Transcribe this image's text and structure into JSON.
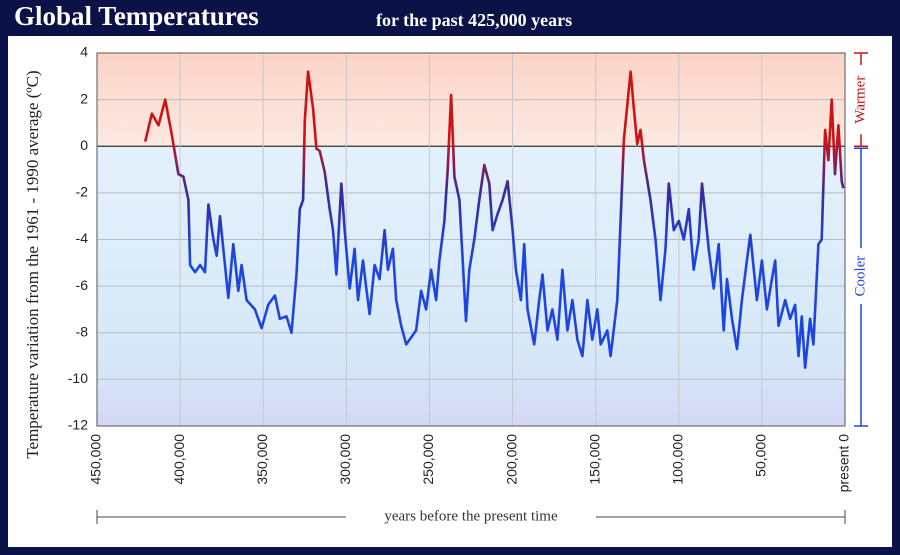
{
  "chart_data": {
    "type": "line",
    "title": "Global Temperatures",
    "subtitle": "for the past 425,000 years",
    "x_label": "years before the present time",
    "y_label": "Temperature variation from the 1961 - 1990 average (ºC)",
    "warm_label": "Warmer",
    "cool_label": "Cooler",
    "xlim": [
      450000,
      0
    ],
    "xticks": [
      {
        "value": 450000,
        "label": "450,000"
      },
      {
        "value": 400000,
        "label": "400,000"
      },
      {
        "value": 350000,
        "label": "350,000"
      },
      {
        "value": 300000,
        "label": "300,000"
      },
      {
        "value": 250000,
        "label": "250,000"
      },
      {
        "value": 200000,
        "label": "200,000"
      },
      {
        "value": 150000,
        "label": "150,000"
      },
      {
        "value": 100000,
        "label": "100,000"
      },
      {
        "value": 50000,
        "label": "50,000"
      },
      {
        "value": 0,
        "label": "present 0"
      }
    ],
    "ylim": [
      -12,
      4
    ],
    "yticks": [
      -12,
      -10,
      -8,
      -6,
      -4,
      -2,
      0,
      2,
      4
    ],
    "grid": true,
    "warm_color": "#cc1414",
    "series": [
      {
        "color": "#1f45e0",
        "x": [
          421000,
          417000,
          413000,
          409000,
          405000,
          401000,
          398000,
          395000,
          394000,
          391000,
          388000,
          385000,
          383000,
          380000,
          378000,
          376000,
          373000,
          371000,
          368000,
          365000,
          363000,
          360000,
          355000,
          351000,
          347000,
          343000,
          340000,
          336000,
          333000,
          330000,
          328000,
          326000,
          325000,
          323000,
          320000,
          318000,
          316000,
          313000,
          310000,
          308000,
          306000,
          303000,
          301000,
          298000,
          295000,
          293000,
          290000,
          288000,
          286000,
          283000,
          280000,
          277000,
          275000,
          272000,
          270000,
          267000,
          264000,
          260000,
          258000,
          255000,
          252000,
          249000,
          246000,
          244000,
          241000,
          239000,
          237000,
          235000,
          232000,
          230000,
          228000,
          226000,
          223000,
          220000,
          217000,
          214000,
          212000,
          209000,
          206000,
          203000,
          200000,
          198000,
          195000,
          193000,
          191000,
          187000,
          184000,
          182000,
          179000,
          176000,
          173000,
          170000,
          167000,
          164000,
          161000,
          158000,
          155000,
          152000,
          149000,
          147000,
          143000,
          141000,
          137000,
          135000,
          133000,
          129000,
          127000,
          125000,
          123000,
          121000,
          117000,
          114000,
          111000,
          108000,
          106000,
          103000,
          100000,
          97000,
          94000,
          91000,
          88000,
          86000,
          82000,
          79000,
          76000,
          73000,
          71000,
          68000,
          65000,
          62000,
          59000,
          57000,
          53000,
          50000,
          47000,
          44000,
          42000,
          40000,
          36000,
          33000,
          30000,
          28000,
          26000,
          24000,
          21000,
          19000,
          16000,
          14000,
          12000,
          10000,
          8000,
          6000,
          4000,
          2000,
          1000
        ],
        "values": [
          0.2,
          1.4,
          0.9,
          2.0,
          0.5,
          -1.2,
          -1.3,
          -2.3,
          -5.1,
          -5.4,
          -5.1,
          -5.4,
          -2.5,
          -4.0,
          -4.7,
          -3.0,
          -5.1,
          -6.5,
          -4.2,
          -6.2,
          -5.1,
          -6.6,
          -7.0,
          -7.8,
          -6.8,
          -6.4,
          -7.4,
          -7.3,
          -8.0,
          -5.5,
          -2.7,
          -2.3,
          1.1,
          3.2,
          1.6,
          -0.1,
          -0.2,
          -1.1,
          -2.7,
          -3.6,
          -5.5,
          -1.6,
          -3.6,
          -6.1,
          -4.4,
          -6.6,
          -4.9,
          -6.1,
          -7.2,
          -5.1,
          -5.7,
          -3.6,
          -5.3,
          -4.4,
          -6.6,
          -7.7,
          -8.5,
          -8.1,
          -7.9,
          -6.2,
          -7.0,
          -5.3,
          -6.6,
          -4.9,
          -3.2,
          -1.0,
          2.2,
          -1.3,
          -2.3,
          -4.9,
          -7.5,
          -5.3,
          -4.0,
          -2.3,
          -0.8,
          -1.6,
          -3.6,
          -2.9,
          -2.3,
          -1.5,
          -3.6,
          -5.3,
          -6.6,
          -4.2,
          -7.0,
          -8.5,
          -6.6,
          -5.5,
          -7.9,
          -7.0,
          -8.3,
          -5.3,
          -7.9,
          -6.6,
          -8.3,
          -9.0,
          -6.6,
          -8.3,
          -7.0,
          -8.5,
          -7.9,
          -9.0,
          -6.6,
          -3.2,
          0.3,
          3.2,
          1.6,
          0.1,
          0.7,
          -0.6,
          -2.3,
          -4.0,
          -6.6,
          -4.4,
          -1.6,
          -3.6,
          -3.2,
          -4.0,
          -2.7,
          -5.3,
          -4.0,
          -1.6,
          -4.4,
          -6.1,
          -4.2,
          -7.9,
          -5.7,
          -7.4,
          -8.7,
          -6.6,
          -4.9,
          -3.8,
          -6.6,
          -4.9,
          -7.0,
          -5.7,
          -4.9,
          -7.7,
          -6.6,
          -7.4,
          -6.8,
          -9.0,
          -7.3,
          -9.5,
          -7.4,
          -8.5,
          -4.2,
          -4.0,
          0.7,
          -0.6,
          2.0,
          -1.2,
          0.9,
          -1.5,
          -1.8
        ]
      }
    ]
  }
}
